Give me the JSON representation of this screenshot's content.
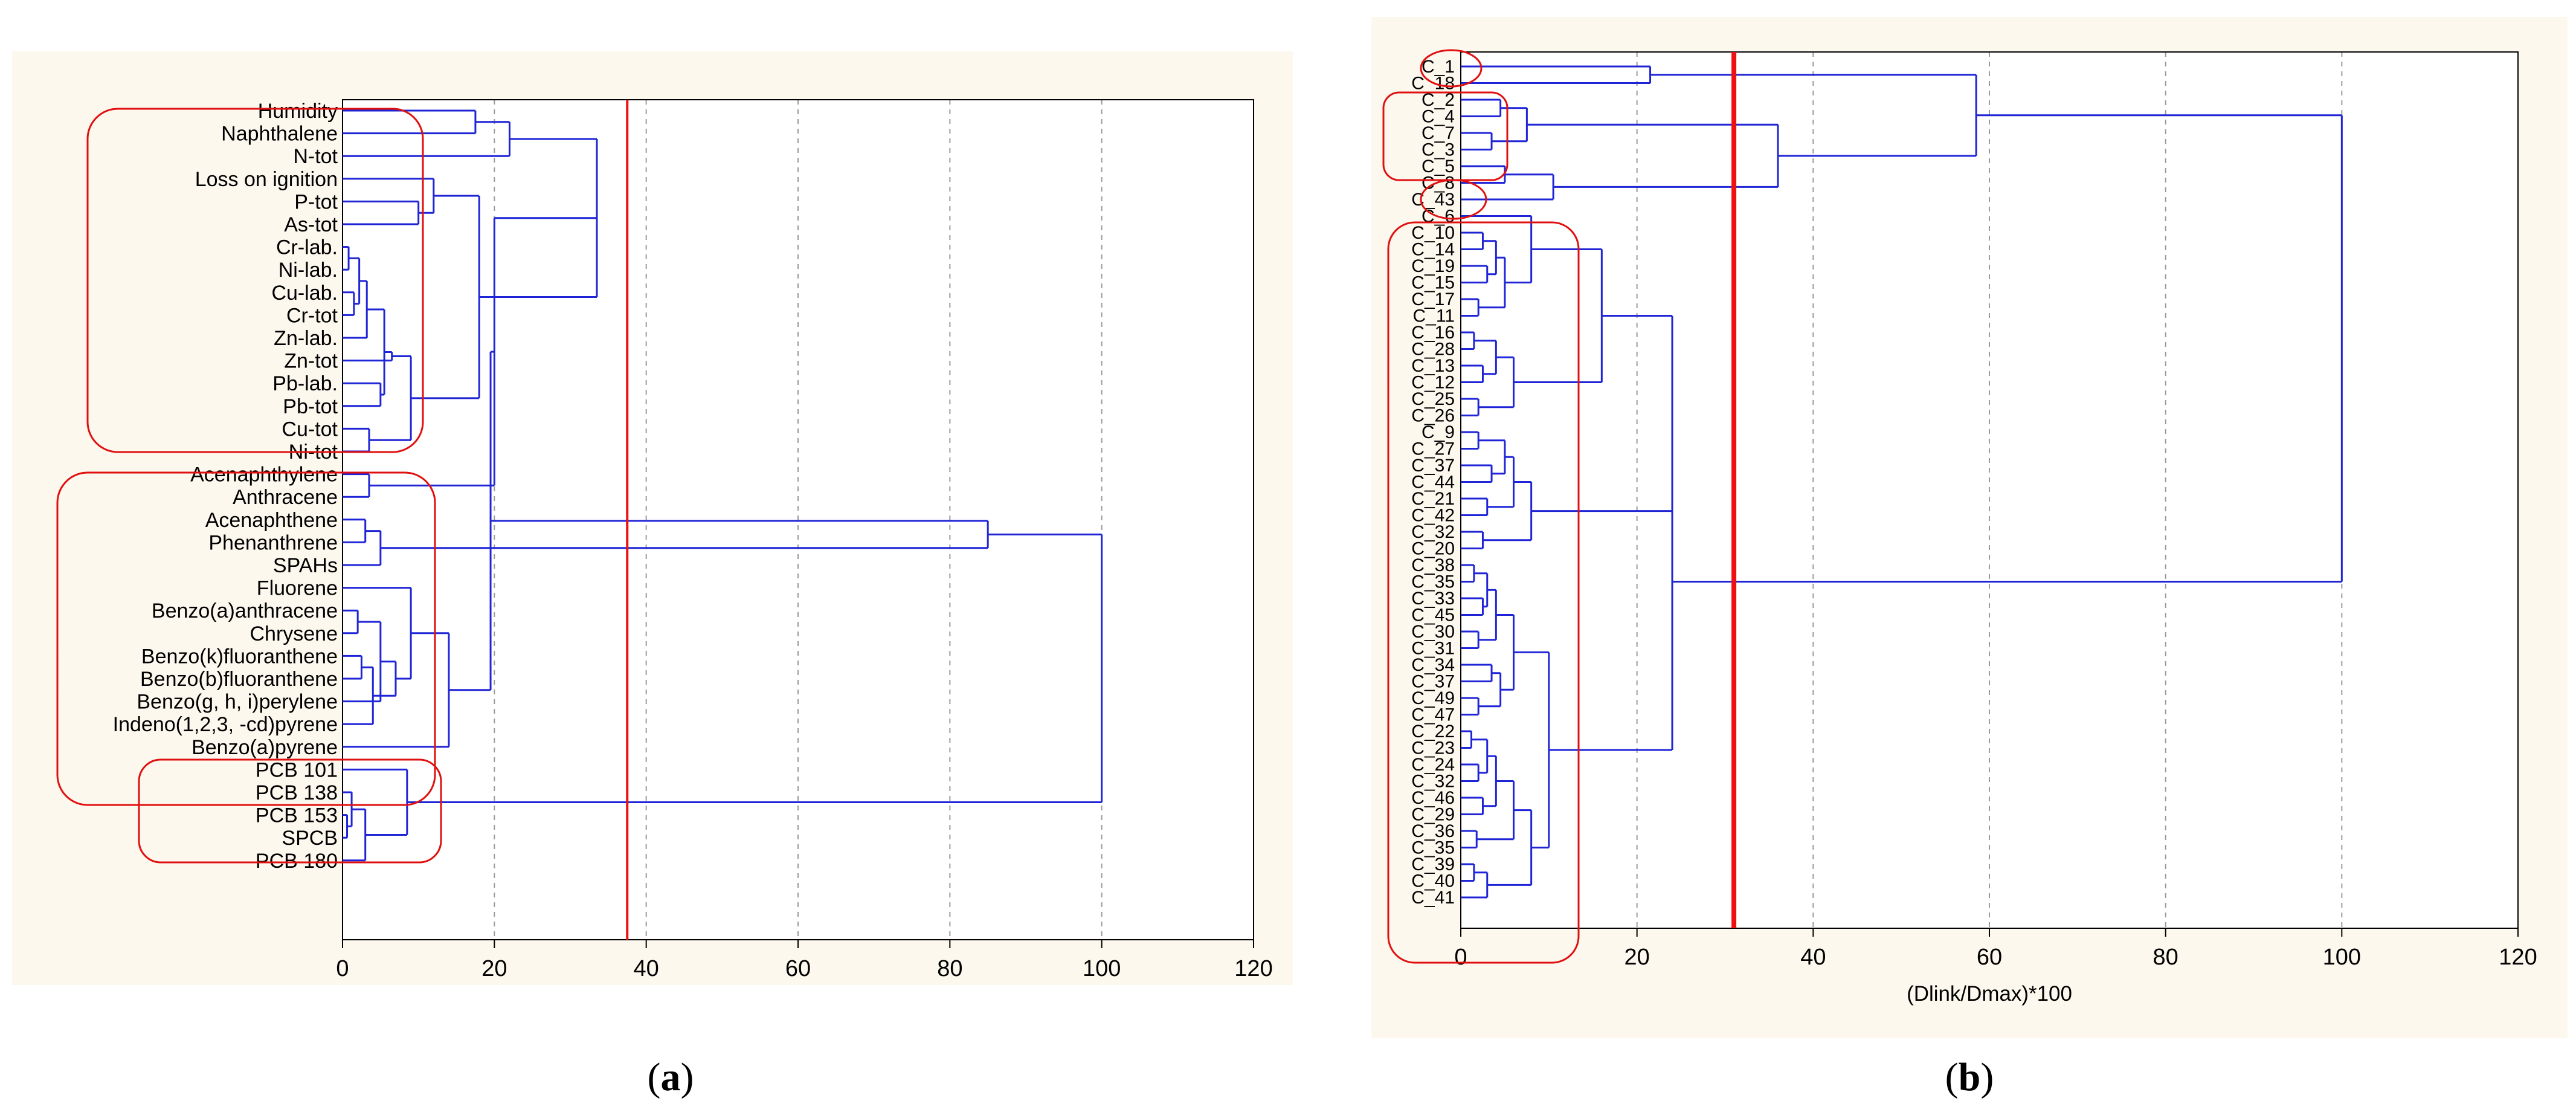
{
  "chart_data": [
    {
      "panel_label": "(a)",
      "type": "dendrogram",
      "xlabel": "(Dlink/Dmax)*100",
      "xlim": [
        0,
        120
      ],
      "xticks": [
        "0",
        "20",
        "40",
        "60",
        "80",
        "100",
        "120"
      ],
      "grid": true,
      "cut_line": 37.5,
      "leaves": [
        "Humidity",
        "Naphthalene",
        "N-tot",
        "Loss on ignition",
        "P-tot",
        "As-tot",
        "Cr-lab.",
        "Ni-lab.",
        "Cu-lab.",
        "Cr-tot",
        "Zn-lab.",
        "Zn-tot",
        "Pb-lab.",
        "Pb-tot",
        "Cu-tot",
        "Ni-tot",
        "Acenaphthylene",
        "Anthracene",
        "Acenaphthene",
        "Phenanthrene",
        "SPAHs",
        "Fluorene",
        "Benzo(a)anthracene",
        "Chrysene",
        "Benzo(k)fluoranthene",
        "Benzo(b)fluoranthene",
        "Benzo(g, h, i)perylene",
        "Indeno(1,2,3, -cd)pyrene",
        "Benzo(a)pyrene",
        "PCB 101",
        "PCB 138",
        "PCB 153",
        "SPCB",
        "PCB 180"
      ],
      "merges": [
        {
          "left": 6,
          "right": 7,
          "height": 0.8
        },
        {
          "left": 8,
          "right": 9,
          "height": 1.5
        },
        {
          "left": -1,
          "right": -2,
          "height": 2.2
        },
        {
          "left": -3,
          "right": 10,
          "height": 3.2
        },
        {
          "left": 12,
          "right": 13,
          "height": 5
        },
        {
          "left": -4,
          "right": -5,
          "height": 5.5
        },
        {
          "left": -6,
          "right": 11,
          "height": 6.5
        },
        {
          "left": 14,
          "right": 15,
          "height": 3.5
        },
        {
          "left": -7,
          "right": -8,
          "height": 9
        },
        {
          "left": 4,
          "right": 5,
          "height": 10
        },
        {
          "left": 3,
          "right": -10,
          "height": 12
        },
        {
          "left": -9,
          "right": -11,
          "height": 18
        },
        {
          "left": 0,
          "right": 1,
          "height": 17.5
        },
        {
          "left": -13,
          "right": 2,
          "height": 22
        },
        {
          "left": -14,
          "right": -12,
          "height": 33.5
        },
        {
          "left": 16,
          "right": 17,
          "height": 3.5
        },
        {
          "left": 18,
          "right": 19,
          "height": 3
        },
        {
          "left": -17,
          "right": 20,
          "height": 5
        },
        {
          "left": -16,
          "right": -15,
          "height": 20
        },
        {
          "left": 22,
          "right": 23,
          "height": 2
        },
        {
          "left": 24,
          "right": 25,
          "height": 2.5
        },
        {
          "left": -20,
          "right": 26,
          "height": 5
        },
        {
          "left": -21,
          "right": 27,
          "height": 4
        },
        {
          "left": -22,
          "right": -23,
          "height": 7
        },
        {
          "left": 21,
          "right": -24,
          "height": 9
        },
        {
          "left": 28,
          "right": -25,
          "height": 14
        },
        {
          "left": -19,
          "right": -26,
          "height": 19.5
        },
        {
          "left": -18,
          "right": -27,
          "height": 85
        },
        {
          "left": 31,
          "right": 32,
          "height": 0.6
        },
        {
          "left": 30,
          "right": -29,
          "height": 1.2
        },
        {
          "left": -30,
          "right": 33,
          "height": 3
        },
        {
          "left": 29,
          "right": -31,
          "height": 8.5
        },
        {
          "left": -28,
          "right": -32,
          "height": 100
        }
      ]
    },
    {
      "panel_label": "(b)",
      "type": "dendrogram",
      "xlabel": "(Dlink/Dmax)*100",
      "xlim": [
        0,
        120
      ],
      "xticks": [
        "0",
        "20",
        "40",
        "60",
        "80",
        "100",
        "120"
      ],
      "grid": true,
      "cut_line": 31,
      "leaves": [
        "C_1",
        "C_18",
        "C_2",
        "C_4",
        "C_7",
        "C_3",
        "C_5",
        "C_8",
        "C_43",
        "C_6",
        "C_10",
        "C_14",
        "C_19",
        "C_15",
        "C_17",
        "C_11",
        "C_16",
        "C_28",
        "C_13",
        "C_12",
        "C_25",
        "C_26",
        "C_9",
        "C_27",
        "C_37",
        "C_44",
        "C_21",
        "C_42",
        "C_32",
        "C_20",
        "C_38",
        "C_35",
        "C_33",
        "C_45",
        "C_30",
        "C_31",
        "C_34",
        "C_37",
        "C_49",
        "C_47",
        "C_22",
        "C_23",
        "C_24",
        "C_32",
        "C_46",
        "C_29",
        "C_36",
        "C_35",
        "C_39",
        "C_40",
        "C_41"
      ],
      "cluster_markers": [
        "C_6",
        "C_10",
        "C_14",
        "C_19",
        "C_15",
        "C_17",
        "C_11",
        "C_16",
        "C_28",
        "C_13",
        "C_12",
        "C_25",
        "C_26",
        "C_9",
        "C_27",
        "C_37",
        "C_44",
        "C_21",
        "C_42",
        "C_32",
        "C_20",
        "C_38",
        "C_35",
        "C_33",
        "C_45",
        "C_30",
        "C_31",
        "C_34",
        "C_37",
        "C_49",
        "C_47",
        "C_22",
        "C_23",
        "C_24",
        "C_32",
        "C_46",
        "C_29",
        "C_36",
        "C_35",
        "C_39",
        "C_40",
        "C_41"
      ]
    }
  ],
  "panel_a_label": "(a)",
  "panel_b_label": "(b)"
}
